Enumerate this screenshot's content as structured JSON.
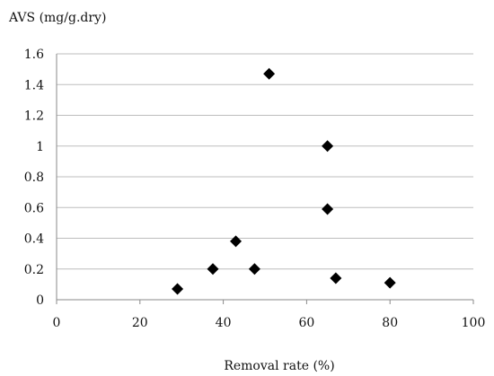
{
  "chart_data": {
    "type": "scatter",
    "title": "",
    "ylabel": "AVS (mg/g.dry)",
    "xlabel": "Removal rate (%)",
    "xlim": [
      0,
      100
    ],
    "ylim": [
      0,
      1.6
    ],
    "xticks": [
      "0",
      "20",
      "40",
      "60",
      "80",
      "100"
    ],
    "yticks": [
      "0",
      "0.2",
      "0.4",
      "0.6",
      "0.8",
      "1",
      "1.2",
      "1.4",
      "1.6"
    ],
    "grid": "horizontal",
    "marker": "diamond",
    "marker_color": "#000000",
    "points": [
      {
        "x": 29,
        "y": 0.07
      },
      {
        "x": 37.5,
        "y": 0.2
      },
      {
        "x": 43,
        "y": 0.38
      },
      {
        "x": 47.5,
        "y": 0.2
      },
      {
        "x": 51,
        "y": 1.47
      },
      {
        "x": 65,
        "y": 1.0
      },
      {
        "x": 65,
        "y": 0.59
      },
      {
        "x": 67,
        "y": 0.14
      },
      {
        "x": 80,
        "y": 0.11
      }
    ]
  }
}
